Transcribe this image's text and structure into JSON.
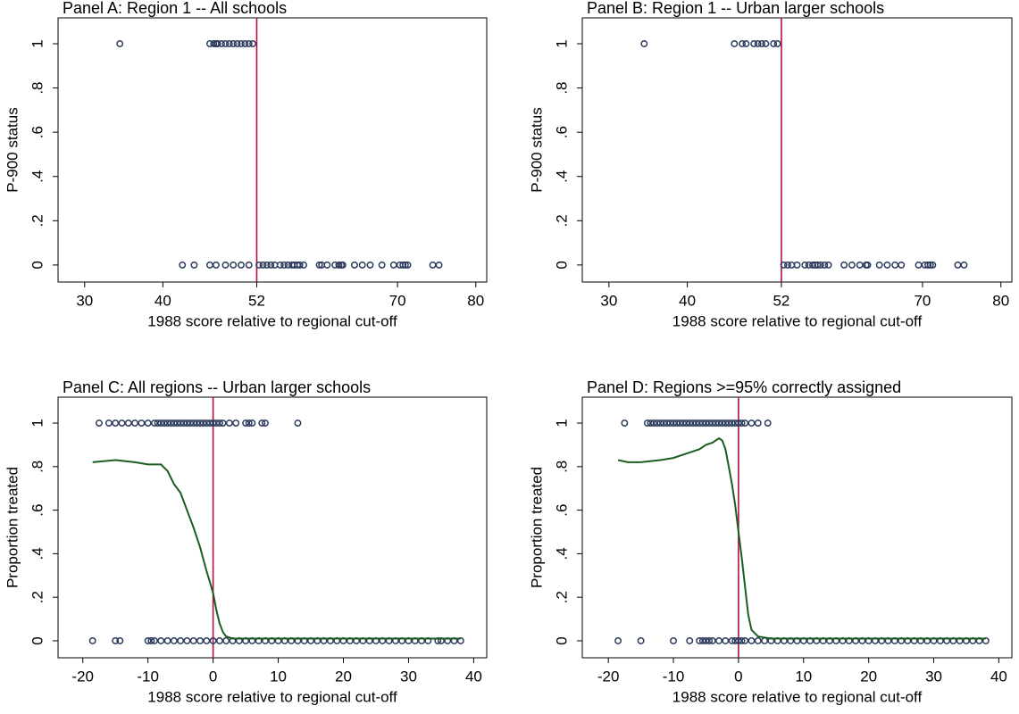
{
  "chart_data": [
    {
      "type": "scatter",
      "title": "Panel A:  Region 1 -- All schools",
      "xlabel": "1988 score relative to regional cut-off",
      "ylabel": "P-900 status",
      "xlim": [
        26.6,
        81.4
      ],
      "ylim": [
        -0.077,
        1.117
      ],
      "xticks": [
        30,
        40,
        52,
        70,
        80
      ],
      "yticks": [
        0,
        {
          "value": 0.2,
          "label": ".2"
        },
        {
          "value": 0.4,
          "label": ".4"
        },
        {
          "value": 0.6,
          "label": ".6"
        },
        {
          "value": 0.8,
          "label": ".8"
        },
        1
      ],
      "color": "#2b3a5c",
      "cutoff": {
        "x": 52,
        "color": "#b0103a"
      },
      "points_at": [
        {
          "y": 1,
          "x": [
            34.5,
            46,
            46.5,
            46.8,
            47,
            47.5,
            48,
            48.5,
            49,
            49.5,
            50,
            50.5,
            51,
            51.5
          ]
        },
        {
          "y": 0,
          "x": [
            42.5,
            44,
            46,
            46.8,
            48,
            49,
            50,
            51,
            52.3,
            52.8,
            53.3,
            53.8,
            54.3,
            55,
            55.5,
            56,
            56.5,
            56.8,
            57.2,
            57.5,
            58,
            60,
            60.3,
            61,
            62,
            62.5,
            62.8,
            63,
            64.5,
            65.5,
            66.5,
            68,
            69.5,
            70.3,
            70.7,
            71,
            71.3,
            74.5,
            75.3
          ]
        }
      ]
    },
    {
      "type": "scatter",
      "title": "Panel B:  Region 1 -- Urban larger schools",
      "xlabel": "1988 score relative to regional cut-off",
      "ylabel": "P-900 status",
      "xlim": [
        26.6,
        81.4
      ],
      "ylim": [
        -0.077,
        1.117
      ],
      "xticks": [
        30,
        40,
        52,
        70,
        80
      ],
      "yticks": [
        0,
        {
          "value": 0.2,
          "label": ".2"
        },
        {
          "value": 0.4,
          "label": ".4"
        },
        {
          "value": 0.6,
          "label": ".6"
        },
        {
          "value": 0.8,
          "label": ".8"
        },
        1
      ],
      "color": "#2b3a5c",
      "cutoff": {
        "x": 52,
        "color": "#b0103a"
      },
      "points_at": [
        {
          "y": 1,
          "x": [
            34.5,
            46,
            47,
            47.5,
            48.5,
            49,
            49.5,
            50,
            51,
            51.5
          ]
        },
        {
          "y": 0,
          "x": [
            52.3,
            52.8,
            53.3,
            54,
            55,
            55.5,
            56,
            56.3,
            56.6,
            57,
            57.5,
            58,
            60,
            61,
            62,
            62.8,
            63,
            64.5,
            65.5,
            66.5,
            67.3,
            69.5,
            70.3,
            70.7,
            71,
            71.3,
            74.5,
            75.3
          ]
        }
      ]
    },
    {
      "type": "scatter",
      "title": "Panel C: All regions -- Urban larger schools",
      "xlabel": "1988 score relative to regional cut-off",
      "ylabel": "Proportion treated",
      "xlim": [
        -23.8,
        42
      ],
      "ylim": [
        -0.078,
        1.119
      ],
      "xticks": [
        -20,
        -10,
        0,
        10,
        20,
        30,
        40
      ],
      "yticks": [
        0,
        {
          "value": 0.2,
          "label": ".2"
        },
        {
          "value": 0.4,
          "label": ".4"
        },
        {
          "value": 0.6,
          "label": ".6"
        },
        {
          "value": 0.8,
          "label": ".8"
        },
        1
      ],
      "color": "#2b3a5c",
      "cutoff": {
        "x": 0,
        "color": "#b0103a"
      },
      "points_at": [
        {
          "y": 1,
          "x": [
            -17.5,
            -16,
            -15,
            -14,
            -13,
            -12,
            -11,
            -10,
            -9,
            -8.5,
            -8,
            -7.5,
            -7,
            -6.5,
            -6,
            -5.5,
            -5,
            -4.5,
            -4,
            -3.5,
            -3,
            -2.5,
            -2,
            -1.5,
            -1,
            -0.5,
            0,
            0.5,
            1,
            1.5,
            2.5,
            3.5,
            5,
            5.5,
            6,
            7.5,
            8,
            13
          ]
        },
        {
          "y": 0,
          "x": [
            -18.5,
            -15,
            -14.3,
            -10,
            -9.5,
            -9,
            -8,
            -7,
            -6,
            -5,
            -4,
            -3,
            -2,
            -1,
            0,
            1,
            2,
            3,
            4,
            5,
            6,
            7,
            8,
            9,
            10,
            11,
            12,
            13,
            14,
            15,
            16,
            17,
            18,
            19,
            20,
            21,
            22,
            23,
            24,
            25,
            26,
            27,
            28,
            29,
            30,
            31,
            32,
            33,
            34.5,
            35,
            36,
            37,
            38
          ]
        }
      ],
      "smooth": {
        "color": "#1b5e20",
        "x": [
          -18.5,
          -15,
          -12,
          -10,
          -8,
          -7,
          -6,
          -5,
          -4,
          -3,
          -2,
          -1,
          0,
          0.5,
          1,
          1.5,
          2,
          3,
          5,
          10,
          20,
          30,
          38
        ],
        "values": [
          0.82,
          0.83,
          0.82,
          0.81,
          0.81,
          0.78,
          0.72,
          0.68,
          0.6,
          0.52,
          0.43,
          0.32,
          0.22,
          0.14,
          0.08,
          0.04,
          0.02,
          0.01,
          0.01,
          0.01,
          0.01,
          0.01,
          0.01
        ]
      }
    },
    {
      "type": "scatter",
      "title": "Panel D: Regions >=95% correctly assigned",
      "xlabel": "1988 score relative to regional cut-off",
      "ylabel": "Proportion treated",
      "xlim": [
        -24,
        42
      ],
      "ylim": [
        -0.078,
        1.119
      ],
      "xticks": [
        -20,
        -10,
        0,
        10,
        20,
        30,
        40
      ],
      "yticks": [
        0,
        {
          "value": 0.2,
          "label": ".2"
        },
        {
          "value": 0.4,
          "label": ".4"
        },
        {
          "value": 0.6,
          "label": ".6"
        },
        {
          "value": 0.8,
          "label": ".8"
        },
        1
      ],
      "color": "#2b3a5c",
      "cutoff": {
        "x": 0,
        "color": "#b0103a"
      },
      "points_at": [
        {
          "y": 1,
          "x": [
            -17.5,
            -14,
            -13.5,
            -13,
            -12.5,
            -12,
            -11.5,
            -11,
            -10.5,
            -10,
            -9.5,
            -9,
            -8.5,
            -8,
            -7.5,
            -7,
            -6.5,
            -6,
            -5.5,
            -5,
            -4.5,
            -4,
            -3.5,
            -3,
            -2.5,
            -2,
            -1.5,
            -1,
            -0.5,
            0,
            0.5,
            1,
            2,
            3,
            4.5
          ]
        },
        {
          "y": 0,
          "x": [
            -18.5,
            -15,
            -10,
            -7.5,
            -6,
            -5.5,
            -5,
            -4.5,
            -4,
            -3,
            -2,
            -1,
            -0.5,
            0,
            0.5,
            1,
            2,
            3,
            4,
            5,
            6,
            7,
            8,
            9,
            10,
            11,
            12,
            13,
            14,
            15,
            16,
            17,
            18,
            19,
            20,
            21,
            22,
            23,
            24,
            25,
            26,
            27,
            28,
            29,
            30,
            31,
            32,
            33,
            34,
            35,
            36,
            37,
            38
          ]
        }
      ],
      "smooth": {
        "color": "#1b5e20",
        "x": [
          -18.5,
          -17,
          -15,
          -12,
          -10,
          -8,
          -6,
          -5,
          -4,
          -3,
          -2.5,
          -2,
          -1.5,
          -1,
          -0.5,
          0,
          0.5,
          1,
          1.5,
          2,
          3,
          5,
          10,
          20,
          30,
          38
        ],
        "values": [
          0.83,
          0.82,
          0.82,
          0.83,
          0.84,
          0.86,
          0.88,
          0.9,
          0.91,
          0.93,
          0.92,
          0.88,
          0.8,
          0.72,
          0.62,
          0.5,
          0.38,
          0.25,
          0.12,
          0.05,
          0.02,
          0.01,
          0.01,
          0.01,
          0.01,
          0.01
        ]
      }
    }
  ]
}
